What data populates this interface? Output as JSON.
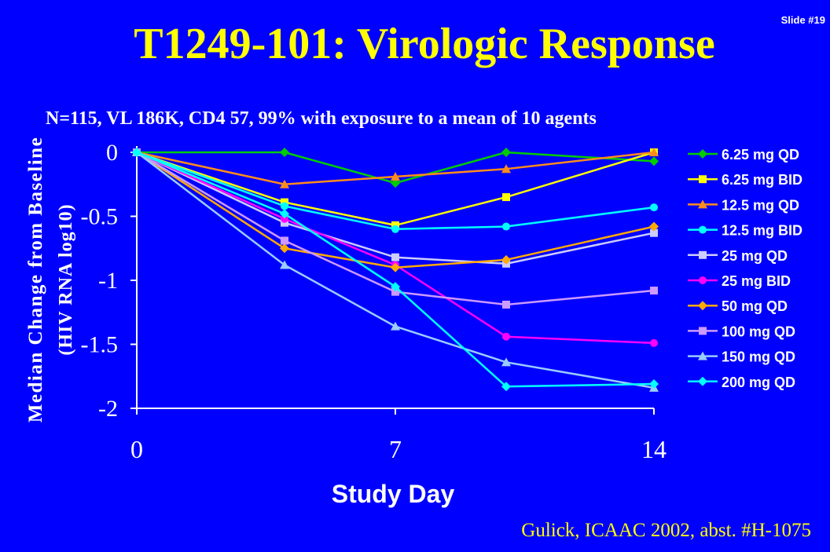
{
  "slide_label": "Slide #19",
  "title": "T1249-101:  Virologic Response",
  "subtitle": "N=115, VL 186K, CD4 57, 99% with exposure to a mean of 10 agents",
  "citation": "Gulick, ICAAC 2002, abst. #H-1075",
  "chart_data": {
    "type": "line",
    "xlabel": "Study Day",
    "ylabel_lines": [
      "Median Change from Baseline",
      "(HIV RNA log10)"
    ],
    "xlim": [
      0,
      14
    ],
    "ylim": [
      -2,
      0
    ],
    "x_ticks": [
      0,
      7,
      14
    ],
    "x_tick_labels": [
      "0",
      "7",
      "14"
    ],
    "y_ticks": [
      0,
      -0.5,
      -1,
      -1.5,
      -2
    ],
    "y_tick_labels": [
      "0",
      "-0.5",
      "-1",
      "-1.5",
      "-2"
    ],
    "grid": false,
    "legend_position": "right",
    "x": [
      0,
      4,
      7,
      10,
      14
    ],
    "series": [
      {
        "name": "6.25 mg QD",
        "color": "#00cc00",
        "marker": "diamond",
        "values": [
          0,
          0,
          -0.24,
          0,
          -0.07
        ]
      },
      {
        "name": "6.25 mg BID",
        "color": "#ffff00",
        "marker": "square",
        "values": [
          0,
          -0.39,
          -0.57,
          -0.35,
          0
        ]
      },
      {
        "name": "12.5 mg QD",
        "color": "#ff8c1a",
        "marker": "triangle",
        "values": [
          0,
          -0.25,
          -0.19,
          -0.13,
          0
        ]
      },
      {
        "name": "12.5 mg BID",
        "color": "#00ffff",
        "marker": "circle",
        "values": [
          0,
          -0.42,
          -0.6,
          -0.58,
          -0.43
        ]
      },
      {
        "name": "25 mg QD",
        "color": "#ccccff",
        "marker": "square",
        "values": [
          0,
          -0.55,
          -0.82,
          -0.87,
          -0.63
        ]
      },
      {
        "name": "25 mg BID",
        "color": "#ff00ff",
        "marker": "circle",
        "values": [
          0,
          -0.52,
          -0.88,
          -1.44,
          -1.49
        ]
      },
      {
        "name": "50 mg QD",
        "color": "#ffaa00",
        "marker": "diamond",
        "values": [
          0,
          -0.75,
          -0.9,
          -0.84,
          -0.58
        ]
      },
      {
        "name": "100 mg QD",
        "color": "#cc99ff",
        "marker": "square",
        "values": [
          0,
          -0.69,
          -1.09,
          -1.19,
          -1.08
        ]
      },
      {
        "name": "150 mg QD",
        "color": "#99ccff",
        "marker": "triangle",
        "values": [
          0,
          -0.88,
          -1.36,
          -1.64,
          -1.84
        ]
      },
      {
        "name": "200 mg QD",
        "color": "#00ffff",
        "marker": "diamond",
        "values": [
          0,
          -0.48,
          -1.05,
          -1.83,
          -1.81
        ]
      }
    ]
  }
}
